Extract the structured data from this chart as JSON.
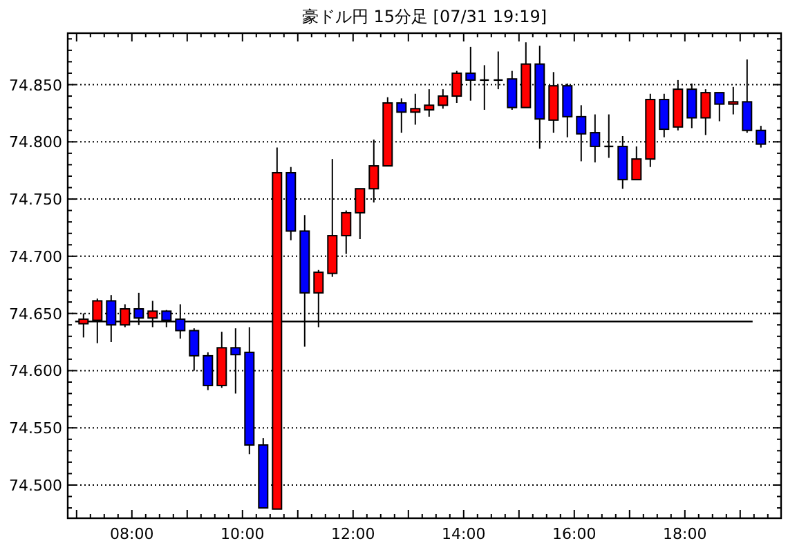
{
  "chart_data": {
    "type": "candlestick",
    "title": "豪ドル円 15分足 [07/31 19:19]",
    "x": [
      7.125,
      7.375,
      7.625,
      7.875,
      8.125,
      8.375,
      8.625,
      8.875,
      9.125,
      9.375,
      9.625,
      9.875,
      10.125,
      10.375,
      10.625,
      10.875,
      11.125,
      11.375,
      11.625,
      11.875,
      12.125,
      12.375,
      12.625,
      12.875,
      13.125,
      13.375,
      13.625,
      13.875,
      14.125,
      14.375,
      14.625,
      14.875,
      15.125,
      15.375,
      15.625,
      15.875,
      16.125,
      16.375,
      16.625,
      16.875,
      17.125,
      17.375,
      17.625,
      17.875,
      18.125,
      18.375,
      18.625,
      18.875,
      19.125,
      19.375
    ],
    "ohlc": [
      [
        74.641,
        74.65,
        74.629,
        74.645
      ],
      [
        74.644,
        74.663,
        74.624,
        74.661
      ],
      [
        74.661,
        74.666,
        74.625,
        74.64
      ],
      [
        74.64,
        74.658,
        74.638,
        74.654
      ],
      [
        74.654,
        74.668,
        74.64,
        74.646
      ],
      [
        74.646,
        74.661,
        74.638,
        74.652
      ],
      [
        74.652,
        74.653,
        74.638,
        74.644
      ],
      [
        74.645,
        74.658,
        74.628,
        74.635
      ],
      [
        74.635,
        74.637,
        74.6,
        74.613
      ],
      [
        74.613,
        74.616,
        74.583,
        74.587
      ],
      [
        74.587,
        74.634,
        74.585,
        74.62
      ],
      [
        74.62,
        74.637,
        74.58,
        74.614
      ],
      [
        74.616,
        74.638,
        74.527,
        74.535
      ],
      [
        74.535,
        74.541,
        74.48,
        74.48
      ],
      [
        74.479,
        74.795,
        74.479,
        74.773
      ],
      [
        74.773,
        74.778,
        74.714,
        74.722
      ],
      [
        74.722,
        74.736,
        74.621,
        74.668
      ],
      [
        74.668,
        74.688,
        74.638,
        74.686
      ],
      [
        74.685,
        74.785,
        74.682,
        74.718
      ],
      [
        74.718,
        74.74,
        74.702,
        74.738
      ],
      [
        74.738,
        74.759,
        74.715,
        74.759
      ],
      [
        74.759,
        74.802,
        74.747,
        74.779
      ],
      [
        74.779,
        74.839,
        74.779,
        74.834
      ],
      [
        74.834,
        74.838,
        74.808,
        74.826
      ],
      [
        74.826,
        74.842,
        74.815,
        74.829
      ],
      [
        74.828,
        74.846,
        74.822,
        74.832
      ],
      [
        74.832,
        74.846,
        74.829,
        74.84
      ],
      [
        74.84,
        74.862,
        74.834,
        74.86
      ],
      [
        74.86,
        74.883,
        74.836,
        74.854
      ],
      [
        74.854,
        74.867,
        74.828,
        74.854
      ],
      [
        74.854,
        74.879,
        74.846,
        74.854
      ],
      [
        74.855,
        74.862,
        74.828,
        74.83
      ],
      [
        74.83,
        74.887,
        74.83,
        74.868
      ],
      [
        74.868,
        74.884,
        74.794,
        74.82
      ],
      [
        74.819,
        74.861,
        74.808,
        74.849
      ],
      [
        74.849,
        74.851,
        74.804,
        74.822
      ],
      [
        74.822,
        74.832,
        74.783,
        74.807
      ],
      [
        74.808,
        74.824,
        74.782,
        74.796
      ],
      [
        74.796,
        74.824,
        74.786,
        74.796
      ],
      [
        74.796,
        74.805,
        74.759,
        74.767
      ],
      [
        74.767,
        74.796,
        74.767,
        74.785
      ],
      [
        74.785,
        74.842,
        74.778,
        74.837
      ],
      [
        74.837,
        74.842,
        74.804,
        74.811
      ],
      [
        74.813,
        74.854,
        74.81,
        74.846
      ],
      [
        74.846,
        74.851,
        74.812,
        74.821
      ],
      [
        74.821,
        74.846,
        74.806,
        74.843
      ],
      [
        74.843,
        74.843,
        74.818,
        74.833
      ],
      [
        74.833,
        74.848,
        74.824,
        74.835
      ],
      [
        74.835,
        74.872,
        74.808,
        74.81
      ],
      [
        74.81,
        74.814,
        74.795,
        74.798
      ]
    ],
    "colors": [
      "#ff0000",
      "#ff0000",
      "#0000ff",
      "#ff0000",
      "#0000ff",
      "#ff0000",
      "#0000ff",
      "#0000ff",
      "#0000ff",
      "#0000ff",
      "#ff0000",
      "#0000ff",
      "#0000ff",
      "#0000ff",
      "#ff0000",
      "#0000ff",
      "#0000ff",
      "#ff0000",
      "#ff0000",
      "#ff0000",
      "#ff0000",
      "#ff0000",
      "#ff0000",
      "#0000ff",
      "#ff0000",
      "#ff0000",
      "#ff0000",
      "#ff0000",
      "#0000ff",
      "#000000",
      "#000000",
      "#0000ff",
      "#ff0000",
      "#0000ff",
      "#ff0000",
      "#0000ff",
      "#0000ff",
      "#0000ff",
      "#000000",
      "#0000ff",
      "#ff0000",
      "#ff0000",
      "#0000ff",
      "#ff0000",
      "#0000ff",
      "#ff0000",
      "#0000ff",
      "#ff0000",
      "#0000ff",
      "#0000ff"
    ],
    "xlim": [
      6.84,
      19.74
    ],
    "ylim": [
      74.471,
      74.895
    ],
    "xticks": [
      {
        "value": 8,
        "label": "08:00"
      },
      {
        "value": 10,
        "label": "10:00"
      },
      {
        "value": 12,
        "label": "12:00"
      },
      {
        "value": 14,
        "label": "14:00"
      },
      {
        "value": 16,
        "label": "16:00"
      },
      {
        "value": 18,
        "label": "18:00"
      }
    ],
    "yticks": [
      {
        "value": 74.5,
        "label": "74.500"
      },
      {
        "value": 74.55,
        "label": "74.550"
      },
      {
        "value": 74.6,
        "label": "74.600"
      },
      {
        "value": 74.65,
        "label": "74.650"
      },
      {
        "value": 74.7,
        "label": "74.700"
      },
      {
        "value": 74.75,
        "label": "74.750"
      },
      {
        "value": 74.8,
        "label": "74.800"
      },
      {
        "value": 74.85,
        "label": "74.850"
      }
    ],
    "grid": "y",
    "ref_lines": [
      {
        "axis": "y",
        "value": 74.643,
        "color": "#000000",
        "line_style": "solid"
      }
    ]
  }
}
